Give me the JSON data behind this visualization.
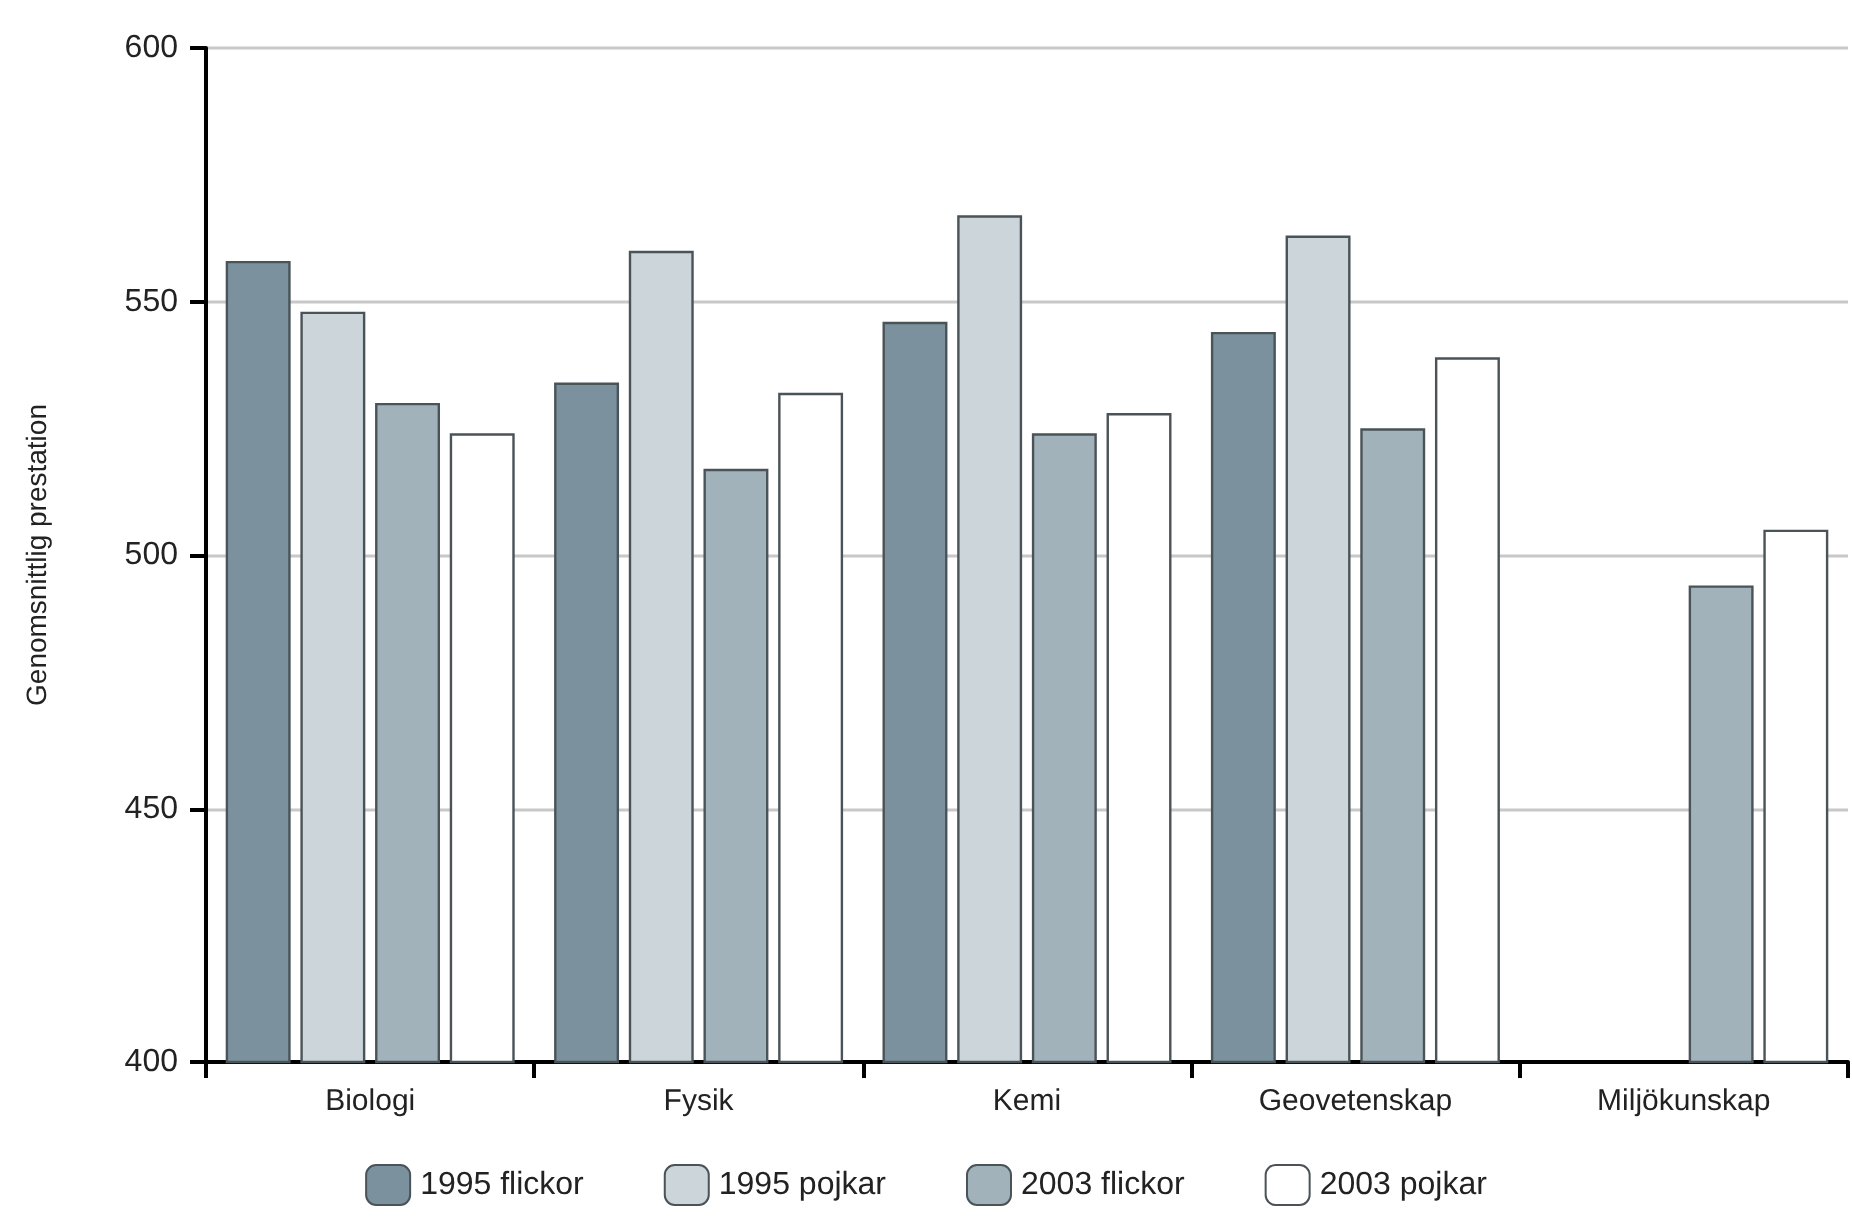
{
  "chart_data": {
    "type": "bar",
    "ylabel": "Genomsnittlig prestation",
    "categories": [
      "Biologi",
      "Fysik",
      "Kemi",
      "Geovetenskap",
      "Miljökunskap"
    ],
    "series": [
      {
        "name": "1995 flickor",
        "color": "#7b929e",
        "values": [
          558,
          534,
          546,
          544,
          null
        ]
      },
      {
        "name": "1995 pojkar",
        "color": "#cbd5da",
        "values": [
          548,
          560,
          567,
          563,
          null
        ]
      },
      {
        "name": "2003 flickor",
        "color": "#a2b2bb",
        "values": [
          530,
          517,
          524,
          525,
          494
        ]
      },
      {
        "name": "2003 pojkar",
        "color": "#ffffff",
        "values": [
          524,
          532,
          528,
          539,
          505
        ]
      }
    ],
    "ylim": [
      400,
      600
    ],
    "yticks": [
      400,
      450,
      500,
      550,
      600
    ],
    "grid": "y",
    "legend": "bottom"
  }
}
